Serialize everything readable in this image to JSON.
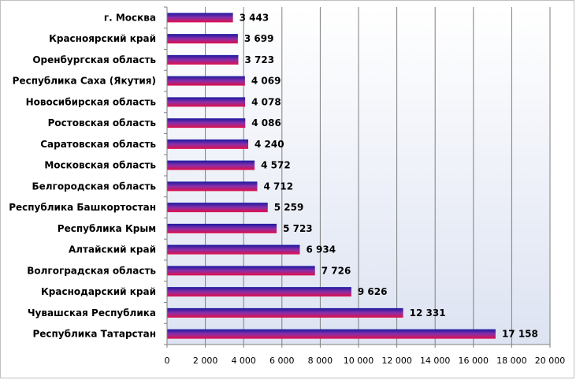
{
  "chart_data": {
    "type": "bar",
    "orientation": "horizontal",
    "categories": [
      "г. Москва",
      "Красноярский край",
      "Оренбургская область",
      "Республика Саха (Якутия)",
      "Новосибирская область",
      "Ростовская область",
      "Саратовская область",
      "Московская область",
      "Белгородская область",
      "Республика Башкортостан",
      "Республика Крым",
      "Алтайский край",
      "Волгоградская область",
      "Краснодарский край",
      "Чувашская Республика",
      "Республика Татарстан"
    ],
    "values": [
      3443,
      3699,
      3723,
      4069,
      4078,
      4086,
      4240,
      4572,
      4712,
      5259,
      5723,
      6934,
      7726,
      9626,
      12331,
      17158
    ],
    "value_labels": [
      "3 443",
      "3 699",
      "3 723",
      "4 069",
      "4 078",
      "4 086",
      "4 240",
      "4 572",
      "4 712",
      "5 259",
      "5 723",
      "6 934",
      "7 726",
      "9 626",
      "12 331",
      "17 158"
    ],
    "xlim": [
      0,
      20000
    ],
    "x_ticks": [
      0,
      2000,
      4000,
      6000,
      8000,
      10000,
      12000,
      14000,
      16000,
      18000,
      20000
    ],
    "x_tick_labels": [
      "0",
      "2 000",
      "4 000",
      "6 000",
      "8 000",
      "10 000",
      "12 000",
      "14 000",
      "16 000",
      "18 000",
      "20 000"
    ],
    "title": "",
    "xlabel": "",
    "ylabel": "",
    "grid": "vertical",
    "legend": "none",
    "colors": {
      "bar_top": "#1a1aa0",
      "bar_mid": "#8a2fa8",
      "bar_bottom": "#e0104a",
      "plot_bg_top": "#ffffff",
      "plot_bg_bottom": "#dde3f2",
      "grid": "#7f7f7f"
    }
  }
}
